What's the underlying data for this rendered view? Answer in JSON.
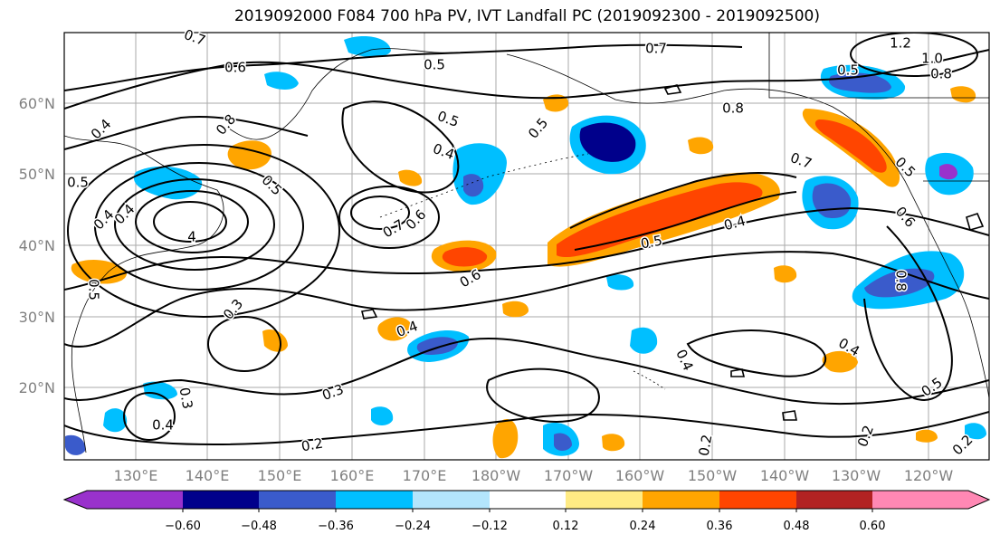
{
  "title": "2019092000 F084 700 hPa PV, IVT Landfall PC (2019092300 - 2019092500)",
  "lat_labels": [
    "60°N",
    "50°N",
    "40°N",
    "30°N",
    "20°N"
  ],
  "lon_labels": [
    "130°E",
    "140°E",
    "150°E",
    "160°E",
    "170°E",
    "180°W",
    "170°W",
    "160°W",
    "150°W",
    "140°W",
    "130°W",
    "120°W"
  ],
  "colorbar": {
    "colors": [
      "#9932CC",
      "#00008B",
      "#3A5BCB",
      "#00BFFF",
      "#B3E5FC",
      "#FFFFFF",
      "#FFEB84",
      "#FFA500",
      "#FF4500",
      "#B22222",
      "#FF88B4"
    ],
    "tick_labels": [
      "−0.60",
      "−0.48",
      "−0.36",
      "−0.24",
      "−0.12",
      "0.12",
      "0.24",
      "0.36",
      "0.48",
      "0.60"
    ]
  },
  "contour_labels": [
    {
      "text": "0.7"
    },
    {
      "text": "0.6"
    },
    {
      "text": "0.5"
    },
    {
      "text": "0.7"
    },
    {
      "text": "0.4"
    },
    {
      "text": "0.5"
    },
    {
      "text": "0.8"
    },
    {
      "text": "0.5"
    },
    {
      "text": "0.4"
    },
    {
      "text": "0.7"
    },
    {
      "text": "0.6"
    },
    {
      "text": "0.6"
    },
    {
      "text": "0.3"
    },
    {
      "text": "0.4"
    },
    {
      "text": "0.3"
    },
    {
      "text": "0.3"
    },
    {
      "text": "0.4"
    },
    {
      "text": "0.2"
    },
    {
      "text": "0.5"
    },
    {
      "text": "0.4"
    },
    {
      "text": "0.8"
    },
    {
      "text": "0.7"
    },
    {
      "text": "0.5"
    },
    {
      "text": "1.0"
    },
    {
      "text": "0.8"
    },
    {
      "text": "1.2"
    },
    {
      "text": "0.5"
    },
    {
      "text": "0.6"
    },
    {
      "text": "0.8"
    },
    {
      "text": "0.4"
    },
    {
      "text": "0.5"
    },
    {
      "text": "0.4"
    },
    {
      "text": "0.2"
    },
    {
      "text": "0.2"
    },
    {
      "text": "0.2"
    },
    {
      "text": "0.5"
    },
    {
      "text": "0.4"
    },
    {
      "text": "0.5"
    },
    {
      "text": "0.5"
    },
    {
      "text": "0.4"
    },
    {
      "text": "4"
    }
  ]
}
